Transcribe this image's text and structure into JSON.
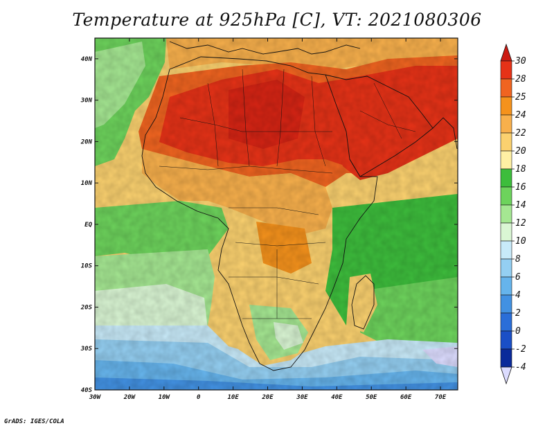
{
  "title": "Temperature at 925hPa [C], VT: 2021080306",
  "credit": "GrADS: IGES/COLA",
  "map": {
    "lon_range": [
      -30,
      75
    ],
    "lat_range": [
      -40,
      45
    ],
    "x_ticks": [
      {
        "value": -30,
        "label": "30W"
      },
      {
        "value": -20,
        "label": "20W"
      },
      {
        "value": -10,
        "label": "10W"
      },
      {
        "value": 0,
        "label": "0"
      },
      {
        "value": 10,
        "label": "10E"
      },
      {
        "value": 20,
        "label": "20E"
      },
      {
        "value": 30,
        "label": "30E"
      },
      {
        "value": 40,
        "label": "40E"
      },
      {
        "value": 50,
        "label": "50E"
      },
      {
        "value": 60,
        "label": "60E"
      },
      {
        "value": 70,
        "label": "70E"
      }
    ],
    "y_ticks": [
      {
        "value": 40,
        "label": "40N"
      },
      {
        "value": 30,
        "label": "30N"
      },
      {
        "value": 20,
        "label": "20N"
      },
      {
        "value": 10,
        "label": "10N"
      },
      {
        "value": 0,
        "label": "EQ"
      },
      {
        "value": -10,
        "label": "10S"
      },
      {
        "value": -20,
        "label": "20S"
      },
      {
        "value": -30,
        "label": "30S"
      },
      {
        "value": -40,
        "label": "40S"
      }
    ]
  },
  "colorbar": {
    "labels": [
      "30",
      "28",
      "25",
      "24",
      "22",
      "20",
      "18",
      "16",
      "14",
      "12",
      "10",
      "8",
      "6",
      "4",
      "2",
      "0",
      "-2",
      "-4"
    ],
    "colors": [
      "#e63217",
      "#f06420",
      "#f5921c",
      "#f8b04c",
      "#fbd16f",
      "#fff0a4",
      "#3dbd3c",
      "#6dd35c",
      "#a5e792",
      "#daf6d4",
      "#c8eaf9",
      "#94cff2",
      "#66b4ec",
      "#4291e2",
      "#2a6ed8",
      "#1a4fc6",
      "#0a2a9a",
      "#dcdcff"
    ],
    "top_color": "#cc1a12"
  }
}
